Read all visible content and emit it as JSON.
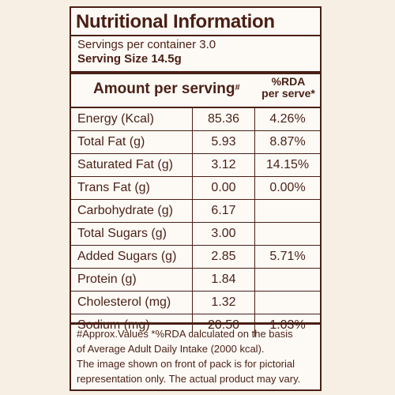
{
  "panel": {
    "title": "Nutritional Information",
    "servings_per_container": "Servings per container 3.0",
    "serving_size": "Serving Size 14.5g"
  },
  "header": {
    "amount_label": "Amount per serving",
    "amount_mark": "#",
    "rda_line1": "%RDA",
    "rda_line2": "per serve*"
  },
  "rows": [
    {
      "name": "Energy (Kcal)",
      "value": "85.36",
      "rda": "4.26%"
    },
    {
      "name": "Total Fat (g)",
      "value": "5.93",
      "rda": "8.87%"
    },
    {
      "name": "Saturated Fat (g)",
      "value": "3.12",
      "rda": "14.15%"
    },
    {
      "name": "Trans Fat (g)",
      "value": "0.00",
      "rda": "0.00%"
    },
    {
      "name": "Carbohydrate (g)",
      "value": "6.17",
      "rda": ""
    },
    {
      "name": "Total Sugars (g)",
      "value": "3.00",
      "rda": ""
    },
    {
      "name": "Added Sugars (g)",
      "value": "2.85",
      "rda": "5.71%"
    },
    {
      "name": "Protein (g)",
      "value": "1.84",
      "rda": ""
    },
    {
      "name": "Cholesterol (mg)",
      "value": "1.32",
      "rda": ""
    },
    {
      "name": "Sodium (mg)",
      "value": "20.50",
      "rda": "1.03%"
    }
  ],
  "footnote": [
    "#Approx.Values *%RDA calculated on the basis",
    "of Average Adult Daily Intake (2000 kcal).",
    "The image shown on front of pack is for pictorial",
    "representation only. The actual product may vary."
  ],
  "colors": {
    "ink": "#4a1f14",
    "panel_bg": "#fdfaf6",
    "page_bg": "#f8efe4"
  }
}
